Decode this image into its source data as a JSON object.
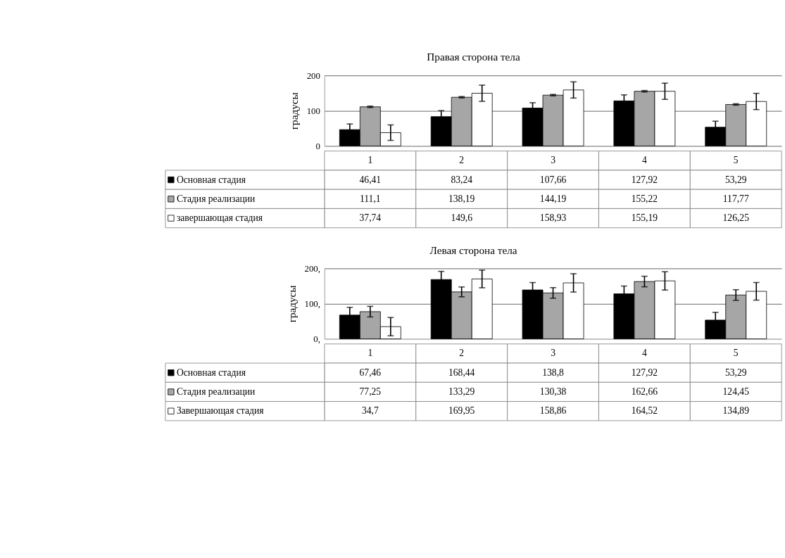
{
  "chart_data": [
    {
      "type": "bar",
      "title": "Правая сторона тела",
      "ylabel": "градусы",
      "categories": [
        "1",
        "2",
        "3",
        "4",
        "5"
      ],
      "ylim": [
        0,
        200
      ],
      "yticks": [
        0,
        100,
        200
      ],
      "grid": "y",
      "legend": "bottom left",
      "series": [
        {
          "name": "Основная стадия",
          "color": "#000000",
          "values": [
            46.41,
            83.24,
            107.66,
            127.92,
            53.29
          ],
          "errors": [
            16,
            17,
            15,
            17,
            17
          ],
          "value_labels": [
            "46,41",
            "83,24",
            "107,66",
            "127,92",
            "53,29"
          ]
        },
        {
          "name": "Стадия реализации",
          "color": "#a6a6a6",
          "values": [
            111.1,
            138.19,
            144.19,
            155.22,
            117.77
          ],
          "errors": [
            2,
            2,
            2,
            2,
            2
          ],
          "value_labels": [
            "111,1",
            "138,19",
            "144,19",
            "155,22",
            "117,77"
          ]
        },
        {
          "name": "завершающая стадия",
          "color": "#ffffff",
          "values": [
            37.74,
            149.6,
            158.93,
            155.19,
            126.25
          ],
          "errors": [
            22,
            23,
            23,
            23,
            23
          ],
          "value_labels": [
            "37,74",
            "149,6",
            "158,93",
            "155,19",
            "126,25"
          ]
        }
      ]
    },
    {
      "type": "bar",
      "title": "Левая сторона тела",
      "ylabel": "градусы",
      "categories": [
        "1",
        "2",
        "3",
        "4",
        "5"
      ],
      "ylim": [
        0,
        200
      ],
      "yticks": [
        {
          "value": 0,
          "label": "0,"
        },
        {
          "value": 100,
          "label": "100,"
        },
        {
          "value": 200,
          "label": "200,"
        }
      ],
      "grid": "y",
      "legend": "bottom left",
      "series": [
        {
          "name": "Основная стадия",
          "color": "#000000",
          "values": [
            67.46,
            168.44,
            138.8,
            127.92,
            53.29
          ],
          "errors": [
            22,
            23,
            21,
            22,
            22
          ],
          "value_labels": [
            "67,46",
            "168,44",
            "138,8",
            "127,92",
            "53,29"
          ]
        },
        {
          "name": "Стадия реализации",
          "color": "#a6a6a6",
          "values": [
            77.25,
            133.29,
            130.38,
            162.66,
            124.45
          ],
          "errors": [
            15,
            14,
            15,
            15,
            15
          ],
          "value_labels": [
            "77,25",
            "133,29",
            "130,38",
            "162,66",
            "124,45"
          ]
        },
        {
          "name": "Завершающая стадия",
          "color": "#ffffff",
          "values": [
            34.7,
            169.95,
            158.86,
            164.52,
            134.89
          ],
          "errors": [
            26,
            25,
            26,
            26,
            25
          ],
          "value_labels": [
            "34,7",
            "169,95",
            "158,86",
            "164,52",
            "134,89"
          ]
        }
      ]
    }
  ]
}
